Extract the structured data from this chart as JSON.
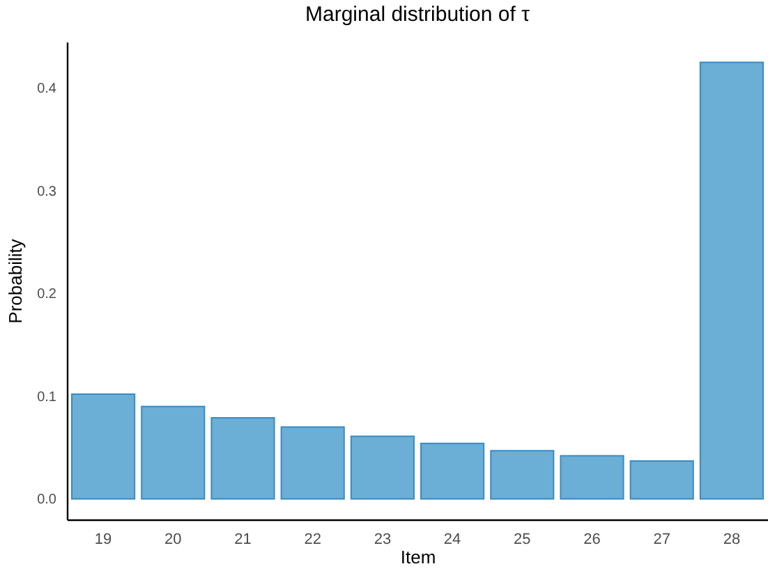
{
  "chart_data": {
    "type": "bar",
    "title": "Marginal distribution of τ",
    "xlabel": "Item",
    "ylabel": "Probability",
    "categories": [
      "19",
      "20",
      "21",
      "22",
      "23",
      "24",
      "25",
      "26",
      "27",
      "28"
    ],
    "values": [
      0.102,
      0.09,
      0.079,
      0.07,
      0.061,
      0.054,
      0.047,
      0.042,
      0.037,
      0.425
    ],
    "color": "#6baed6",
    "ylim": [
      -0.02,
      0.445
    ],
    "yticks": [
      {
        "value": 0,
        "label": "0.0"
      },
      0.1,
      0.2,
      0.3,
      0.4
    ],
    "grid": false
  }
}
